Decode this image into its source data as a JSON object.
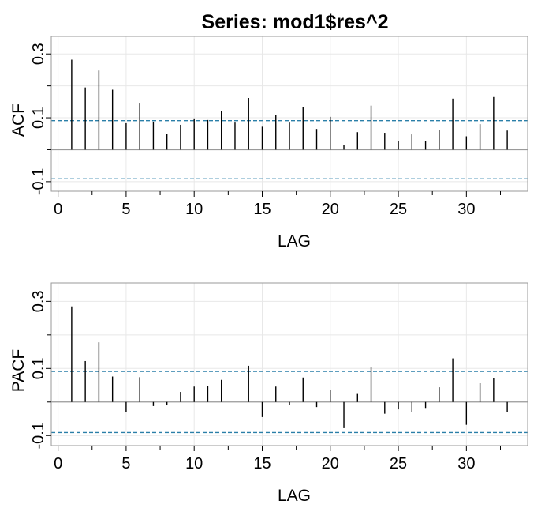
{
  "title": "Series:  mod1$res^2",
  "chart_data": [
    {
      "type": "bar",
      "xlabel": "LAG",
      "ylabel": "ACF",
      "xlim": [
        -0.5,
        34.5
      ],
      "ylim": [
        -0.13,
        0.355
      ],
      "yticks": [
        -0.1,
        0.1,
        0.3
      ],
      "ytick_labels": [
        "-0.1",
        "0.1",
        "0.3"
      ],
      "xticks": [
        0,
        5,
        10,
        15,
        20,
        25,
        30
      ],
      "xtick_labels": [
        "0",
        "5",
        "10",
        "15",
        "20",
        "25",
        "30"
      ],
      "ci": 0.091,
      "grid": true,
      "lags": [
        1,
        2,
        3,
        4,
        5,
        6,
        7,
        8,
        9,
        10,
        11,
        12,
        13,
        14,
        15,
        16,
        17,
        18,
        19,
        20,
        21,
        22,
        23,
        24,
        25,
        26,
        27,
        28,
        29,
        30,
        31,
        32,
        33
      ],
      "values": [
        0.282,
        0.195,
        0.248,
        0.188,
        0.083,
        0.147,
        0.088,
        0.05,
        0.078,
        0.098,
        0.093,
        0.12,
        0.085,
        0.162,
        0.072,
        0.108,
        0.085,
        0.133,
        0.065,
        0.103,
        0.015,
        0.055,
        0.138,
        0.053,
        0.027,
        0.048,
        0.027,
        0.063,
        0.16,
        0.042,
        0.08,
        0.165,
        0.06
      ]
    },
    {
      "type": "bar",
      "xlabel": "LAG",
      "ylabel": "PACF",
      "xlim": [
        -0.5,
        34.5
      ],
      "ylim": [
        -0.13,
        0.355
      ],
      "yticks": [
        -0.1,
        0.1,
        0.3
      ],
      "ytick_labels": [
        "-0.1",
        "0.1",
        "0.3"
      ],
      "xticks": [
        0,
        5,
        10,
        15,
        20,
        25,
        30
      ],
      "xtick_labels": [
        "0",
        "5",
        "10",
        "15",
        "20",
        "25",
        "30"
      ],
      "ci": 0.091,
      "grid": true,
      "lags": [
        1,
        2,
        3,
        4,
        5,
        6,
        7,
        8,
        9,
        10,
        11,
        12,
        13,
        14,
        15,
        16,
        17,
        18,
        19,
        20,
        21,
        22,
        23,
        24,
        25,
        26,
        27,
        28,
        29,
        30,
        31,
        32,
        33
      ],
      "values": [
        0.285,
        0.122,
        0.178,
        0.076,
        -0.03,
        0.074,
        -0.012,
        -0.01,
        0.03,
        0.046,
        0.048,
        0.066,
        0.0,
        0.108,
        -0.045,
        0.046,
        -0.008,
        0.073,
        -0.015,
        0.036,
        -0.078,
        0.024,
        0.105,
        -0.035,
        -0.022,
        -0.03,
        -0.02,
        0.044,
        0.13,
        -0.068,
        0.056,
        0.072,
        -0.03
      ]
    }
  ],
  "colors": {
    "spike": "#000000",
    "ci_line": "#2a7fa8",
    "grid": "#e8e8e8",
    "frame": "#9a9a9a",
    "zero_line": "#9a9a9a"
  }
}
